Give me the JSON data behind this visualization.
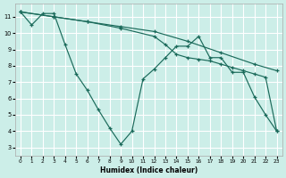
{
  "xlabel": "Humidex (Indice chaleur)",
  "ylabel": "",
  "background_color": "#cceee8",
  "grid_color": "#ffffff",
  "line_color": "#1a6a5a",
  "xlim": [
    -0.5,
    23.5
  ],
  "ylim": [
    2.5,
    11.8
  ],
  "xticks": [
    0,
    1,
    2,
    3,
    4,
    5,
    6,
    7,
    8,
    9,
    10,
    11,
    12,
    13,
    14,
    15,
    16,
    17,
    18,
    19,
    20,
    21,
    22,
    23
  ],
  "yticks": [
    3,
    4,
    5,
    6,
    7,
    8,
    9,
    10,
    11
  ],
  "line1_x": [
    0,
    1,
    2,
    3,
    4,
    5,
    6,
    7,
    8,
    9,
    10,
    11,
    12,
    13,
    14,
    15,
    16,
    17,
    18,
    19,
    20,
    21,
    22,
    23
  ],
  "line1_y": [
    11.3,
    10.5,
    11.2,
    11.2,
    9.3,
    7.5,
    6.5,
    5.3,
    4.2,
    3.2,
    4.0,
    7.2,
    7.8,
    8.5,
    9.2,
    9.2,
    9.8,
    8.5,
    8.5,
    7.6,
    7.6,
    6.1,
    5.0,
    4.0
  ],
  "line2_x": [
    0,
    3,
    6,
    9,
    12,
    15,
    18,
    21,
    23
  ],
  "line2_y": [
    11.3,
    11.0,
    10.7,
    10.4,
    10.1,
    9.5,
    8.8,
    8.1,
    7.7
  ],
  "line3_x": [
    0,
    3,
    6,
    9,
    12,
    13,
    14,
    15,
    16,
    17,
    18,
    19,
    20,
    21,
    22,
    23
  ],
  "line3_y": [
    11.3,
    11.0,
    10.7,
    10.3,
    9.8,
    9.3,
    8.7,
    8.5,
    8.4,
    8.3,
    8.1,
    7.9,
    7.7,
    7.5,
    7.3,
    4.0
  ]
}
